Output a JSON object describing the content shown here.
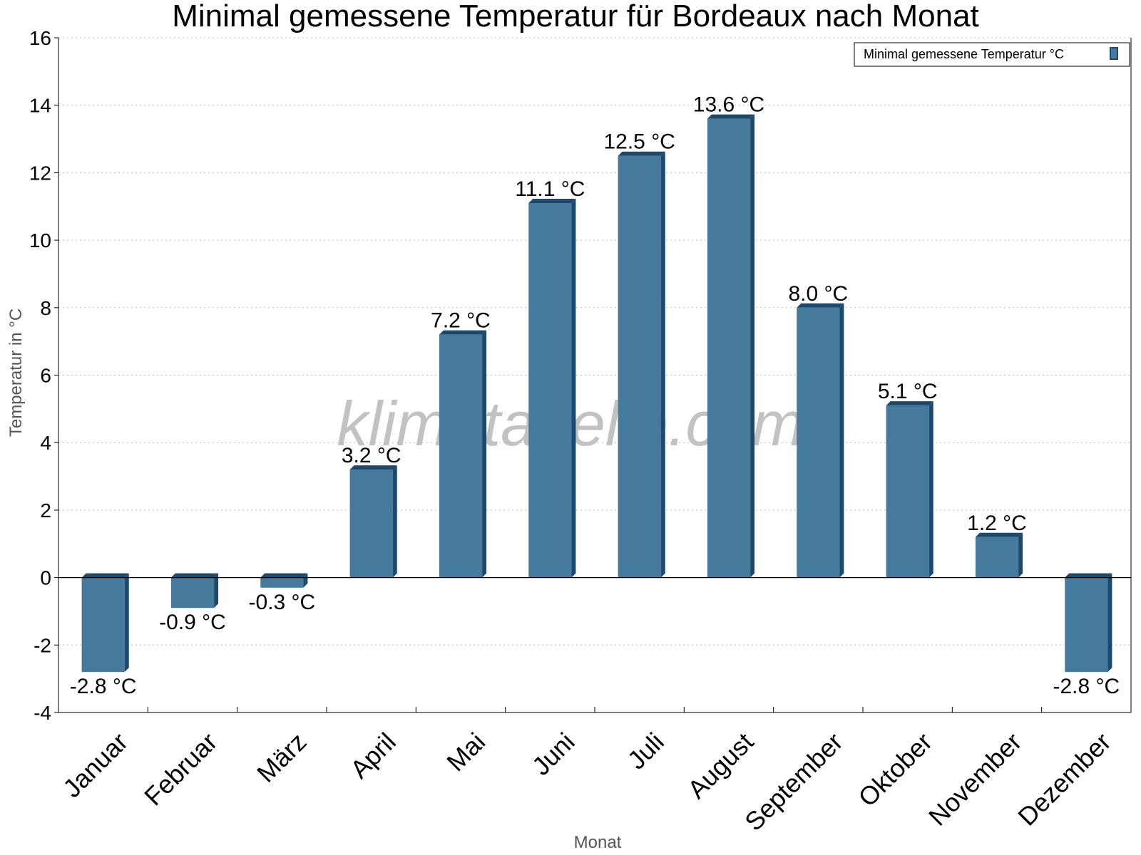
{
  "chart_data": {
    "type": "bar",
    "title": "Minimal gemessene Temperatur für Bordeaux nach Monat",
    "xlabel": "Monat",
    "ylabel": "Temperatur in °C",
    "categories": [
      "Januar",
      "Februar",
      "März",
      "April",
      "Mai",
      "Juni",
      "Juli",
      "August",
      "September",
      "Oktober",
      "November",
      "Dezember"
    ],
    "series": [
      {
        "name": "Minimal gemessene Temperatur °C",
        "values": [
          -2.8,
          -0.9,
          -0.3,
          3.2,
          7.2,
          11.1,
          12.5,
          13.6,
          8.0,
          5.1,
          1.2,
          -2.8
        ],
        "data_labels": [
          "-2.8 °C",
          "-0.9 °C",
          "-0.3 °C",
          "3.2 °C",
          "7.2 °C",
          "11.1 °C",
          "12.5 °C",
          "13.6 °C",
          "8.0 °C",
          "5.1 °C",
          "1.2 °C",
          "-2.8 °C"
        ]
      }
    ],
    "yticks": [
      "-4",
      "-2",
      "0",
      "2",
      "4",
      "6",
      "8",
      "10",
      "12",
      "14",
      "16"
    ],
    "ylim": [
      -4,
      16
    ],
    "grid": true,
    "legend_position": "top-right",
    "bar_color": "#467a9c",
    "bar_side_color": "#1c4a6e",
    "watermark": "klimatabelle.com"
  }
}
